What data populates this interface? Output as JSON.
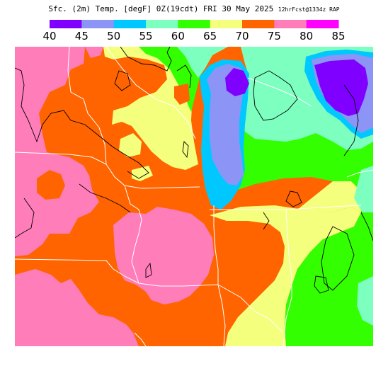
{
  "title": {
    "main": "Sfc. (2m) Temp. [degF] 0Z(19cdt) FRI 30 May 2025",
    "forecast": "12hrFcst@1334z RAP"
  },
  "legend": {
    "unit": "degF",
    "ticks": [
      "40",
      "45",
      "50",
      "55",
      "60",
      "65",
      "70",
      "75",
      "80",
      "85"
    ],
    "bins": [
      {
        "from": 40,
        "to": 45,
        "color": "#7f00ff"
      },
      {
        "from": 45,
        "to": 50,
        "color": "#8c94f5"
      },
      {
        "from": 50,
        "to": 55,
        "color": "#00c8ff"
      },
      {
        "from": 55,
        "to": 60,
        "color": "#7dffc0"
      },
      {
        "from": 60,
        "to": 65,
        "color": "#33ff00"
      },
      {
        "from": 65,
        "to": 70,
        "color": "#f4ff7d"
      },
      {
        "from": 70,
        "to": 75,
        "color": "#ff6400"
      },
      {
        "from": 75,
        "to": 80,
        "color": "#ff7eb9"
      },
      {
        "from": 80,
        "to": 85,
        "color": "#ff00ff"
      }
    ]
  },
  "colors": {
    "t40": "#7f00ff",
    "t45": "#8c94f5",
    "t50": "#00c8ff",
    "t55": "#7dffc0",
    "t60": "#33ff00",
    "t65": "#f4ff7d",
    "t70": "#ff6400",
    "t75": "#ff7eb9",
    "t80": "#ff00ff",
    "borders": "#ffffff",
    "contours": "#000000"
  }
}
